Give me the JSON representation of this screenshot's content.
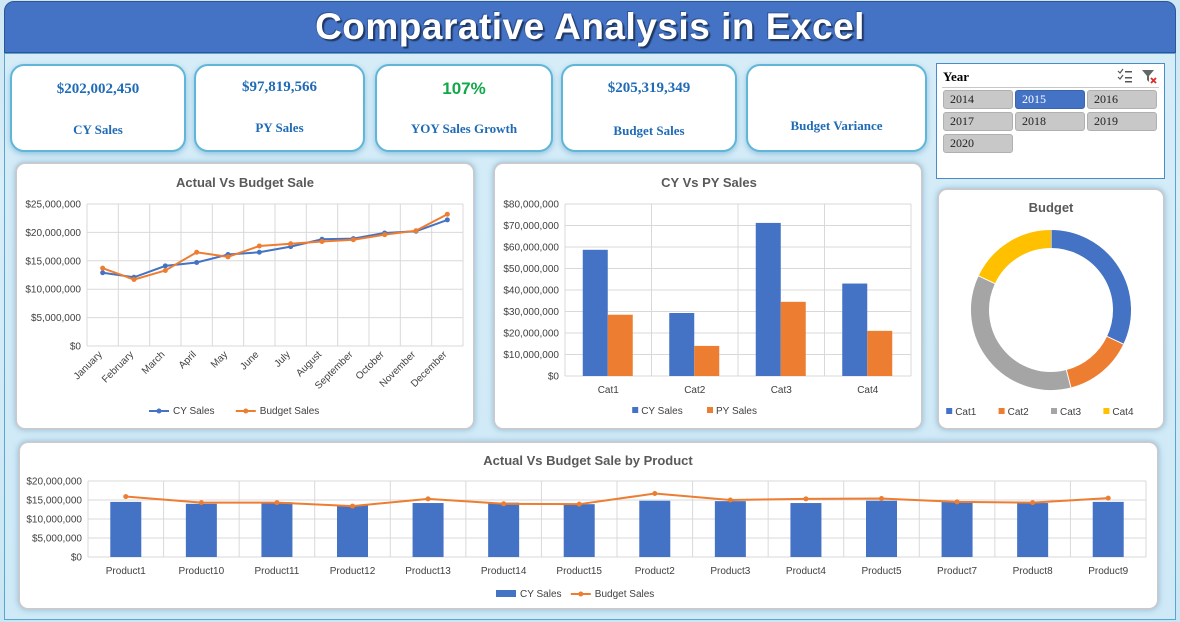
{
  "header": {
    "title": "Comparative Analysis in Excel"
  },
  "kpis": [
    {
      "value": "$202,002,450",
      "label": "CY Sales",
      "value_color": "#1f6bb5"
    },
    {
      "value": "$97,819,566",
      "label": "PY Sales",
      "value_color": "#1f6bb5"
    },
    {
      "value": "107%",
      "label": "YOY Sales Growth",
      "value_color": "#12a84a"
    },
    {
      "value": "$205,319,349",
      "label": "Budget Sales",
      "value_color": "#1f6bb5"
    },
    {
      "value": "",
      "label": "Budget Variance",
      "value_color": "#1f6bb5"
    }
  ],
  "slicer": {
    "title": "Year",
    "icons": [
      "multi-select-icon",
      "clear-filter-icon"
    ],
    "years": [
      "2014",
      "2015",
      "2016",
      "2017",
      "2018",
      "2019",
      "2020"
    ],
    "selected": "2015"
  },
  "colors": {
    "cy": "#4472c4",
    "budget": "#ed7d31",
    "py": "#ed7d31",
    "cat3": "#a5a5a5",
    "cat4": "#ffc000"
  },
  "chart_data": [
    {
      "id": "actual-vs-budget",
      "type": "line",
      "title": "Actual Vs Budget Sale",
      "categories": [
        "January",
        "February",
        "March",
        "April",
        "May",
        "June",
        "July",
        "August",
        "September",
        "October",
        "November",
        "December"
      ],
      "series": [
        {
          "name": "CY Sales",
          "values": [
            12900000,
            12100000,
            14100000,
            14700000,
            16100000,
            16500000,
            17500000,
            18800000,
            18900000,
            19900000,
            20200000,
            22200000
          ]
        },
        {
          "name": "Budget Sales",
          "values": [
            13700000,
            11700000,
            13300000,
            16500000,
            15700000,
            17600000,
            18000000,
            18400000,
            18700000,
            19600000,
            20300000,
            23200000
          ]
        }
      ],
      "ylim": [
        0,
        25000000
      ],
      "yticks": [
        "$0",
        "$5,000,000",
        "$10,000,000",
        "$15,000,000",
        "$20,000,000",
        "$25,000,000"
      ],
      "legend": "bottom"
    },
    {
      "id": "cy-vs-py",
      "type": "bar",
      "title": "CY Vs PY Sales",
      "categories": [
        "Cat1",
        "Cat2",
        "Cat3",
        "Cat4"
      ],
      "series": [
        {
          "name": "CY Sales",
          "values": [
            58700000,
            29300000,
            71200000,
            43000000
          ]
        },
        {
          "name": "PY Sales",
          "values": [
            28500000,
            14000000,
            34500000,
            21000000
          ]
        }
      ],
      "ylim": [
        0,
        80000000
      ],
      "yticks": [
        "$0",
        "$10,000,000",
        "$20,000,000",
        "$30,000,000",
        "$40,000,000",
        "$50,000,000",
        "$60,000,000",
        "$70,000,000",
        "$80,000,000"
      ],
      "legend": "bottom"
    },
    {
      "id": "budget-donut",
      "type": "pie",
      "title": "Budget",
      "categories": [
        "Cat1",
        "Cat2",
        "Cat3",
        "Cat4"
      ],
      "values": [
        32,
        14,
        36,
        18
      ],
      "legend": "bottom"
    },
    {
      "id": "by-product",
      "type": "bar",
      "title": "Actual Vs Budget Sale by Product",
      "categories": [
        "Product1",
        "Product10",
        "Product11",
        "Product12",
        "Product13",
        "Product14",
        "Product15",
        "Product2",
        "Product3",
        "Product4",
        "Product5",
        "Product7",
        "Product8",
        "Product9"
      ],
      "series": [
        {
          "name": "CY Sales",
          "values": [
            14500000,
            14000000,
            14400000,
            13600000,
            14200000,
            14300000,
            13900000,
            14800000,
            14700000,
            14200000,
            14800000,
            14600000,
            14200000,
            14500000
          ]
        },
        {
          "name": "Budget Sales",
          "values": [
            15900000,
            14300000,
            14300000,
            13400000,
            15300000,
            14000000,
            13900000,
            16700000,
            15000000,
            15300000,
            15400000,
            14500000,
            14300000,
            15500000
          ]
        }
      ],
      "ylim": [
        0,
        20000000
      ],
      "yticks": [
        "$0",
        "$5,000,000",
        "$10,000,000",
        "$15,000,000",
        "$20,000,000"
      ],
      "legend": "bottom"
    }
  ]
}
